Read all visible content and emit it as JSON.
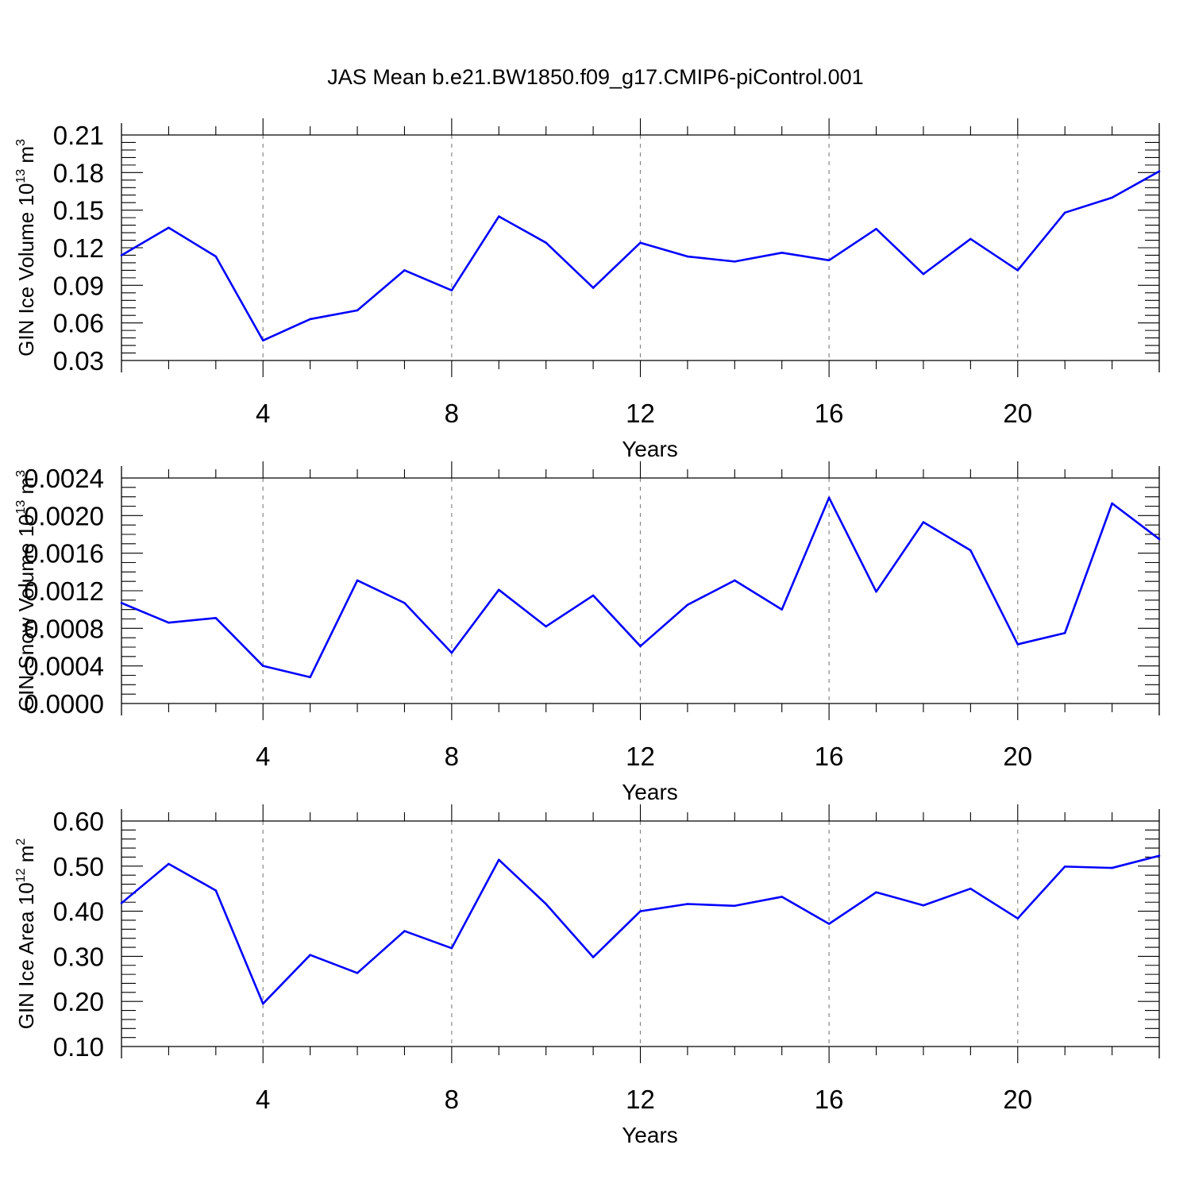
{
  "colors": {
    "series_line": "#0000ff",
    "axes": "#000000",
    "grid": "#888888",
    "background": "#ffffff"
  },
  "chart_data": {
    "title": "JAS Mean b.e21.BW1850.f09_g17.CMIP6-piControl.001",
    "panels": [
      {
        "type": "line",
        "ylabel_main": "GIN Ice Volume 10",
        "ylabel_exp": "13",
        "ylabel_unit": "m",
        "ylabel_unit_exp": "3",
        "xlabel": "Years",
        "xlim": [
          1,
          23
        ],
        "ylim": [
          0.03,
          0.21
        ],
        "xticks": [
          4,
          8,
          12,
          16,
          20
        ],
        "xtick_labels": [
          "4",
          "8",
          "12",
          "16",
          "20"
        ],
        "yticks": [
          0.03,
          0.06,
          0.09,
          0.12,
          0.15,
          0.18,
          0.21
        ],
        "ytick_labels": [
          "0.03",
          "0.06",
          "0.09",
          "0.12",
          "0.15",
          "0.18",
          "0.21"
        ],
        "y_minor_step": 0.006,
        "grid": "vertical dashed at major x ticks",
        "x": [
          1,
          2,
          3,
          4,
          5,
          6,
          7,
          8,
          9,
          10,
          11,
          12,
          13,
          14,
          15,
          16,
          17,
          18,
          19,
          20,
          21,
          22,
          23
        ],
        "y": [
          0.114,
          0.136,
          0.113,
          0.046,
          0.063,
          0.07,
          0.102,
          0.086,
          0.145,
          0.124,
          0.088,
          0.124,
          0.113,
          0.109,
          0.116,
          0.11,
          0.135,
          0.099,
          0.127,
          0.102,
          0.148,
          0.16,
          0.181
        ]
      },
      {
        "type": "line",
        "ylabel_main": "GIN Snow Volume 10",
        "ylabel_exp": "13",
        "ylabel_unit": "m",
        "ylabel_unit_exp": "3",
        "xlabel": "Years",
        "xlim": [
          1,
          23
        ],
        "ylim": [
          0.0,
          0.0024
        ],
        "xticks": [
          4,
          8,
          12,
          16,
          20
        ],
        "xtick_labels": [
          "4",
          "8",
          "12",
          "16",
          "20"
        ],
        "yticks": [
          0.0,
          0.0004,
          0.0008,
          0.0012,
          0.0016,
          0.002,
          0.0024
        ],
        "ytick_labels": [
          "0.0000",
          "0.0004",
          "0.0008",
          "0.0012",
          "0.0016",
          "0.0020",
          "0.0024"
        ],
        "y_minor_step": 0.0001,
        "grid": "vertical dashed at major x ticks",
        "x": [
          1,
          2,
          3,
          4,
          5,
          6,
          7,
          8,
          9,
          10,
          11,
          12,
          13,
          14,
          15,
          16,
          17,
          18,
          19,
          20,
          21,
          22,
          23
        ],
        "y": [
          0.00107,
          0.00086,
          0.00091,
          0.0004,
          0.00028,
          0.00131,
          0.00107,
          0.00054,
          0.00121,
          0.00082,
          0.00115,
          0.00061,
          0.00105,
          0.00131,
          0.001,
          0.00219,
          0.00119,
          0.00193,
          0.00163,
          0.00063,
          0.00075,
          0.00213,
          0.00175
        ]
      },
      {
        "type": "line",
        "ylabel_main": "GIN Ice Area 10",
        "ylabel_exp": "12",
        "ylabel_unit": "m",
        "ylabel_unit_exp": "2",
        "xlabel": "Years",
        "xlim": [
          1,
          23
        ],
        "ylim": [
          0.1,
          0.6
        ],
        "xticks": [
          4,
          8,
          12,
          16,
          20
        ],
        "xtick_labels": [
          "4",
          "8",
          "12",
          "16",
          "20"
        ],
        "yticks": [
          0.1,
          0.2,
          0.3,
          0.4,
          0.5,
          0.6
        ],
        "ytick_labels": [
          "0.10",
          "0.20",
          "0.30",
          "0.40",
          "0.50",
          "0.60"
        ],
        "y_minor_step": 0.02,
        "grid": "vertical dashed at major x ticks",
        "x": [
          1,
          2,
          3,
          4,
          5,
          6,
          7,
          8,
          9,
          10,
          11,
          12,
          13,
          14,
          15,
          16,
          17,
          18,
          19,
          20,
          21,
          22,
          23
        ],
        "y": [
          0.418,
          0.505,
          0.446,
          0.195,
          0.303,
          0.263,
          0.356,
          0.318,
          0.514,
          0.416,
          0.298,
          0.4,
          0.416,
          0.412,
          0.432,
          0.372,
          0.442,
          0.413,
          0.45,
          0.384,
          0.499,
          0.496,
          0.523
        ]
      }
    ]
  }
}
